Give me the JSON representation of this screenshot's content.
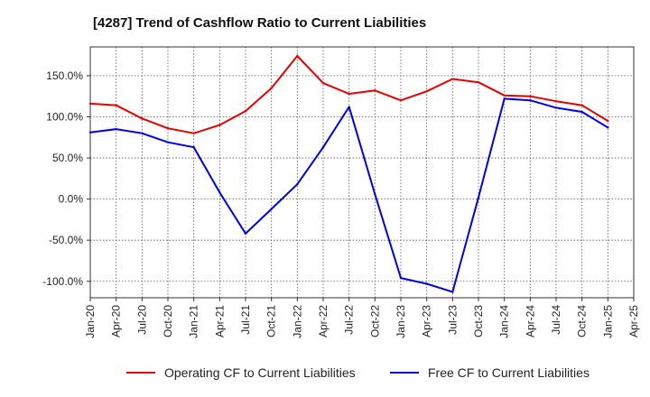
{
  "chart_data": {
    "type": "line",
    "title": "[4287]  Trend of Cashflow Ratio to Current Liabilities",
    "xlabel": "",
    "ylabel": "",
    "ylim": [
      -120,
      185
    ],
    "yticks": [
      150,
      100,
      50,
      0,
      -50,
      -100
    ],
    "ytick_labels": [
      "150.0%",
      "100.0%",
      "50.0%",
      "0.0%",
      "-50.0%",
      "-100.0%"
    ],
    "x": [
      "Jan-20",
      "Apr-20",
      "Jul-20",
      "Oct-20",
      "Jan-21",
      "Apr-21",
      "Jul-21",
      "Oct-21",
      "Jan-22",
      "Apr-22",
      "Jul-22",
      "Oct-22",
      "Jan-23",
      "Apr-23",
      "Jul-23",
      "Oct-23",
      "Jan-24",
      "Apr-24",
      "Jul-24",
      "Oct-24",
      "Jan-25",
      "Apr-25"
    ],
    "grid": true,
    "legend_position": "bottom",
    "series": [
      {
        "name": "Operating CF to Current Liabilities",
        "color": "#e60000",
        "values": [
          116,
          114,
          98,
          86,
          80,
          90,
          107,
          135,
          174,
          141,
          128,
          132,
          120,
          131,
          146,
          142,
          126,
          125,
          119,
          114,
          95,
          null
        ]
      },
      {
        "name": "Free CF to Current Liabilities",
        "color": "#0000e6",
        "values": [
          81,
          85,
          80,
          69,
          63,
          8,
          -42,
          -12,
          18,
          63,
          112,
          6,
          -96,
          -103,
          -113,
          2,
          122,
          120,
          111,
          106,
          87,
          null
        ]
      }
    ]
  }
}
